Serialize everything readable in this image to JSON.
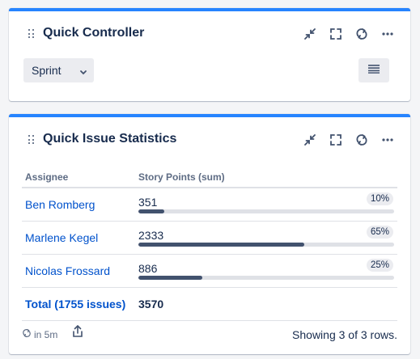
{
  "quick_controller": {
    "title": "Quick Controller",
    "sprint_select": {
      "value": "Sprint"
    }
  },
  "quick_issue_statistics": {
    "title": "Quick Issue Statistics",
    "columns": [
      "Assignee",
      "Story Points (sum)"
    ],
    "rows": [
      {
        "assignee": "Ben Romberg",
        "points": "351",
        "percent": "10%",
        "fraction": 0.1
      },
      {
        "assignee": "Marlene Kegel",
        "points": "2333",
        "percent": "65%",
        "fraction": 0.65
      },
      {
        "assignee": "Nicolas Frossard",
        "points": "886",
        "percent": "25%",
        "fraction": 0.25
      }
    ],
    "total": {
      "label": "Total (1755 issues)",
      "points": "3570"
    },
    "refresh_text": "in 5m",
    "showing_text": "Showing 3 of 3 rows."
  },
  "icons": [
    "drag-handle-icon",
    "minimize-icon",
    "fullscreen-icon",
    "refresh-icon",
    "more-icon",
    "chevron-down-icon",
    "list-icon",
    "share-icon"
  ],
  "colors": {
    "accent": "#2684ff",
    "link": "#0052cc",
    "bar_fill": "#42526e",
    "bar_track": "#dfe1e6"
  }
}
